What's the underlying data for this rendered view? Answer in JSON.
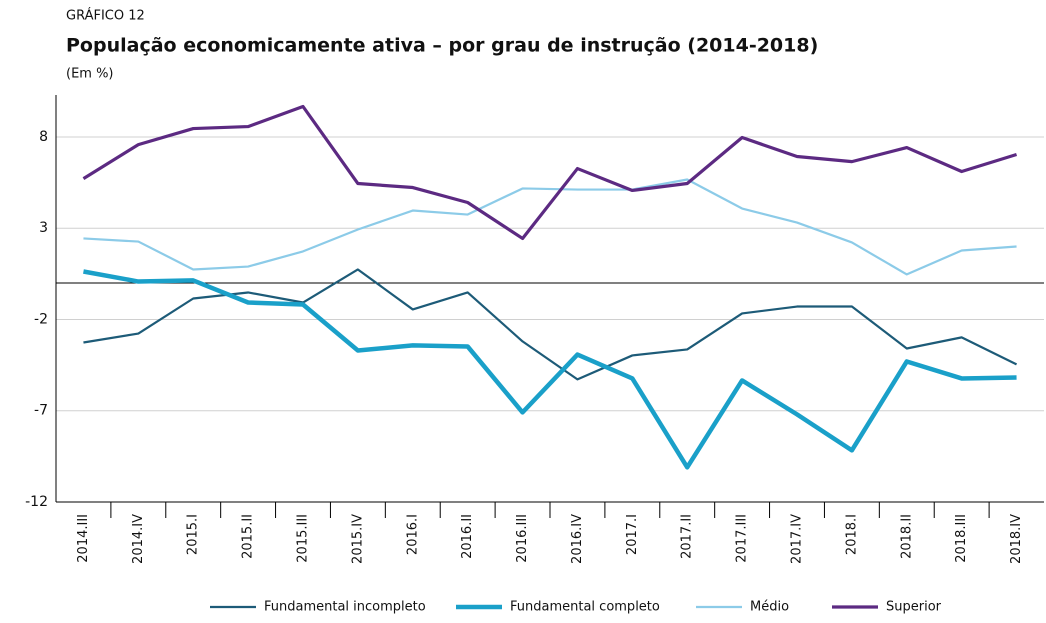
{
  "header": {
    "label": "GRÁFICO 12",
    "subtitle": "(Em %)"
  },
  "chart_data": {
    "type": "line",
    "title": "População economicamente ativa – por grau de instrução (2014-2018)",
    "categories": [
      "2014.III",
      "2014.IV",
      "2015.I",
      "2015.II",
      "2015.III",
      "2015.IV",
      "2016.I",
      "2016.II",
      "2016.III",
      "2016.IV",
      "2017.I",
      "2017.II",
      "2017.III",
      "2017.IV",
      "2018.I",
      "2018.II",
      "2018.III",
      "2018.IV"
    ],
    "ylim": [
      -12,
      10.3
    ],
    "yticks": [
      -12,
      -7,
      -2,
      3,
      8
    ],
    "grid": true,
    "legend": "bottom",
    "series": [
      {
        "name": "Fundamental incompleto",
        "color": "#1d5b78",
        "values": [
          -3.26,
          -2.77,
          -0.85,
          -0.52,
          -1.07,
          0.74,
          -1.45,
          -0.52,
          -3.2,
          -5.28,
          -3.97,
          -3.64,
          -1.67,
          -1.29,
          -1.29,
          -3.59,
          -2.98,
          -4.46
        ]
      },
      {
        "name": "Fundamental completo",
        "color": "#1aa0c9",
        "values": [
          0.63,
          0.08,
          0.14,
          -1.07,
          -1.18,
          -3.7,
          -3.42,
          -3.48,
          -7.09,
          -3.92,
          -5.23,
          -10.1,
          -5.34,
          -7.2,
          -9.17,
          -4.3,
          -5.23,
          -5.18
        ]
      },
      {
        "name": "Médio",
        "color": "#8ccbe8",
        "values": [
          2.44,
          2.27,
          0.74,
          0.9,
          1.73,
          2.93,
          3.97,
          3.75,
          5.18,
          5.12,
          5.12,
          5.67,
          4.08,
          3.31,
          2.22,
          0.47,
          1.78,
          2.0
        ]
      },
      {
        "name": "Superior",
        "color": "#5c2a82",
        "values": [
          5.72,
          7.58,
          8.46,
          8.57,
          9.67,
          5.45,
          5.23,
          4.41,
          2.44,
          6.27,
          5.07,
          5.45,
          7.97,
          6.93,
          6.65,
          7.42,
          6.11,
          7.04
        ]
      }
    ]
  }
}
